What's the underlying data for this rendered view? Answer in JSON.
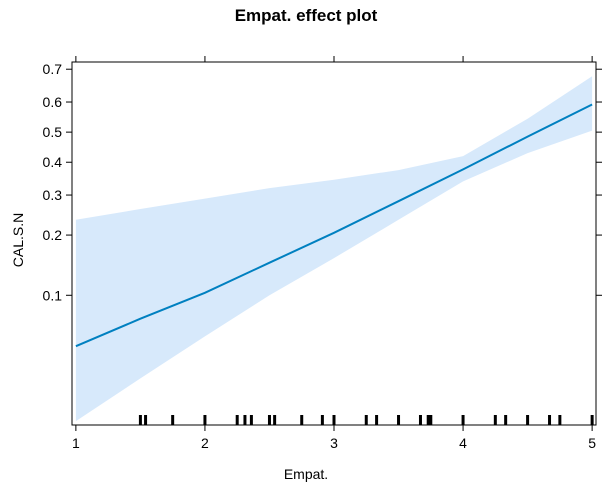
{
  "chart_data": {
    "type": "line",
    "title": "Empat. effect plot",
    "xlabel": "Empat.",
    "ylabel": "CAL.S.N",
    "xlim": [
      0.97,
      5.03
    ],
    "y_scale": "logit",
    "ylim": [
      0.019,
      0.72
    ],
    "x_ticks": [
      1,
      2,
      3,
      4,
      5
    ],
    "y_ticks": [
      0.1,
      0.2,
      0.3,
      0.4,
      0.5,
      0.6,
      0.7
    ],
    "y_tick_labels": [
      "0.1",
      "0.2",
      "0.3",
      "0.4",
      "0.5",
      "0.6",
      "0.7"
    ],
    "grid": false,
    "series": [
      {
        "x": [
          1,
          1.5,
          2,
          2.5,
          3,
          3.5,
          4,
          4.5,
          5
        ],
        "y": [
          0.053,
          0.075,
          0.103,
          0.147,
          0.205,
          0.283,
          0.377,
          0.485,
          0.592
        ],
        "color": "#0080c0"
      }
    ],
    "band": {
      "x": [
        1,
        1.5,
        2,
        2.5,
        3,
        3.5,
        4,
        4.5,
        5
      ],
      "lower": [
        0.02,
        0.035,
        0.06,
        0.1,
        0.155,
        0.235,
        0.34,
        0.43,
        0.505
      ],
      "upper": [
        0.235,
        0.262,
        0.29,
        0.32,
        0.345,
        0.375,
        0.42,
        0.545,
        0.68
      ],
      "color": "#d7e9fb"
    },
    "rug": [
      1.5,
      1.54,
      1.75,
      2.0,
      2.25,
      2.31,
      2.36,
      2.5,
      2.54,
      2.75,
      2.91,
      3.0,
      3.25,
      3.33,
      3.5,
      3.67,
      3.73,
      3.75,
      4.0,
      4.25,
      4.33,
      4.5,
      4.67,
      4.75,
      5.0
    ]
  }
}
